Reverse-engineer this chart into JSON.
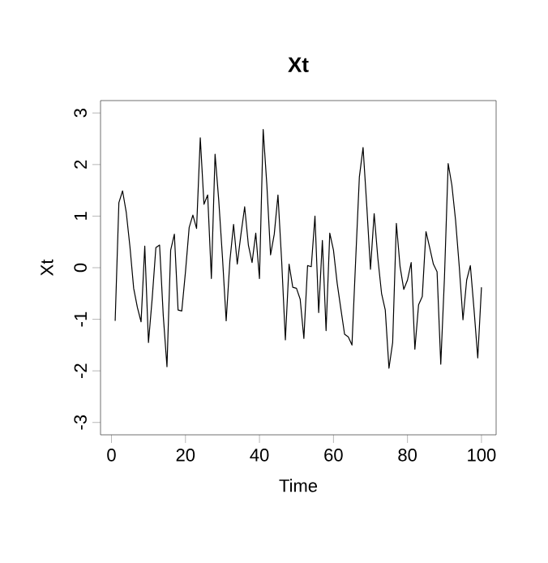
{
  "chart_data": {
    "type": "line",
    "title": "Xt",
    "xlabel": "Time",
    "ylabel": "Xt",
    "x": [
      1,
      2,
      3,
      4,
      5,
      6,
      7,
      8,
      9,
      10,
      11,
      12,
      13,
      14,
      15,
      16,
      17,
      18,
      19,
      20,
      21,
      22,
      23,
      24,
      25,
      26,
      27,
      28,
      29,
      30,
      31,
      32,
      33,
      34,
      35,
      36,
      37,
      38,
      39,
      40,
      41,
      42,
      43,
      44,
      45,
      46,
      47,
      48,
      49,
      50,
      51,
      52,
      53,
      54,
      55,
      56,
      57,
      58,
      59,
      60,
      61,
      62,
      63,
      64,
      65,
      66,
      67,
      68,
      69,
      70,
      71,
      72,
      73,
      74,
      75,
      76,
      77,
      78,
      79,
      80,
      81,
      82,
      83,
      84,
      85,
      86,
      87,
      88,
      89,
      90,
      91,
      92,
      93,
      94,
      95,
      96,
      97,
      98,
      99,
      100
    ],
    "series": [
      {
        "color": "#000000",
        "values": [
          -1.03,
          1.26,
          1.49,
          1.07,
          0.4,
          -0.4,
          -0.77,
          -1.05,
          0.42,
          -1.45,
          -0.6,
          0.39,
          0.44,
          -0.93,
          -1.92,
          0.34,
          0.65,
          -0.82,
          -0.84,
          -0.08,
          0.78,
          1.02,
          0.76,
          2.52,
          1.23,
          1.41,
          -0.21,
          2.2,
          1.3,
          0.2,
          -1.03,
          0.13,
          0.84,
          0.07,
          0.65,
          1.18,
          0.44,
          0.1,
          0.67,
          -0.21,
          2.68,
          1.6,
          0.25,
          0.65,
          1.41,
          0.13,
          -1.4,
          0.07,
          -0.38,
          -0.4,
          -0.61,
          -1.37,
          0.04,
          0.02,
          1.0,
          -0.87,
          0.53,
          -1.22,
          0.67,
          0.34,
          -0.3,
          -0.8,
          -1.29,
          -1.34,
          -1.5,
          0.15,
          1.76,
          2.33,
          1.2,
          -0.03,
          1.05,
          0.18,
          -0.5,
          -0.82,
          -1.95,
          -1.45,
          0.86,
          0.02,
          -0.42,
          -0.24,
          0.1,
          -1.58,
          -0.72,
          -0.56,
          0.7,
          0.39,
          0.07,
          -0.08,
          -1.87,
          -0.19,
          2.02,
          1.6,
          0.92,
          0.02,
          -1.01,
          -0.24,
          0.04,
          -0.82,
          -1.75,
          -0.38
        ]
      }
    ],
    "xlim": [
      -2.96,
      103.96
    ],
    "ylim": [
      -3.24,
      3.24
    ],
    "xticks": [
      0,
      20,
      40,
      60,
      80,
      100
    ],
    "yticks": [
      -3,
      -2,
      -1,
      0,
      1,
      2,
      3
    ],
    "marker": "none",
    "line_style": "solid"
  }
}
